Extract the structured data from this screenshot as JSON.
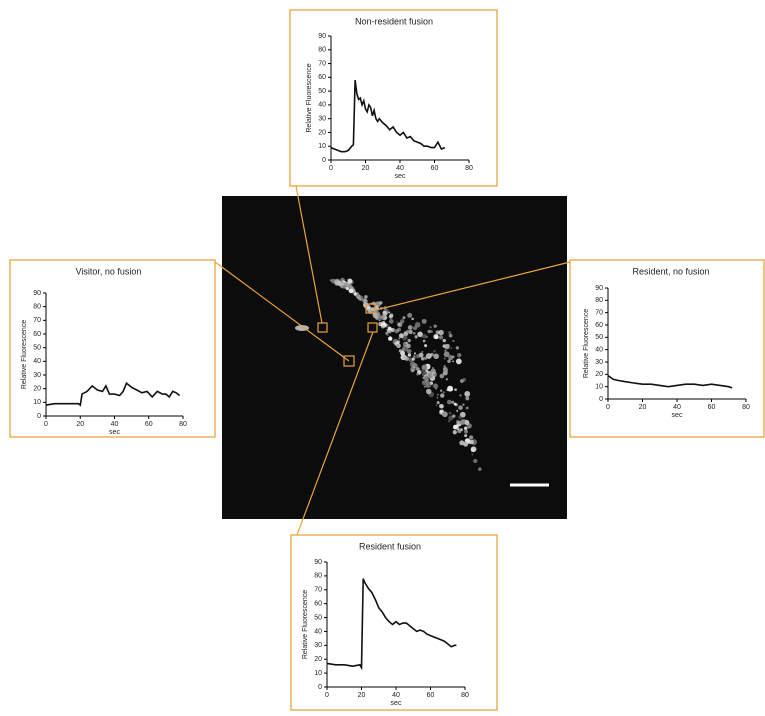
{
  "chart_data": [
    {
      "type": "line",
      "title": "Non-resident fusion",
      "x_label": "sec",
      "y_label": "Relative Fluorescence",
      "color": "#111111",
      "x": [
        0,
        2,
        4,
        6,
        8,
        10,
        12,
        13,
        14,
        15,
        16,
        17,
        18,
        19,
        20,
        21,
        22,
        23,
        24,
        25,
        26,
        27,
        28,
        30,
        32,
        34,
        36,
        38,
        40,
        42,
        44,
        46,
        48,
        50,
        52,
        54,
        56,
        58,
        60,
        62,
        64,
        66
      ],
      "values": [
        9,
        8,
        7,
        6,
        6,
        7,
        10,
        11,
        58,
        48,
        44,
        45,
        40,
        43,
        37,
        35,
        40,
        38,
        32,
        36,
        30,
        28,
        30,
        27,
        25,
        22,
        24,
        20,
        18,
        20,
        16,
        17,
        14,
        13,
        12,
        10,
        10,
        9,
        9,
        13,
        8,
        9
      ],
      "xlim": [
        0,
        80
      ],
      "ylim": [
        0,
        90
      ],
      "xticks": [
        0,
        20,
        40,
        60,
        80
      ],
      "yticks": [
        0,
        10,
        20,
        30,
        40,
        50,
        60,
        70,
        80,
        90
      ]
    },
    {
      "type": "line",
      "title": "Visitor, no fusion",
      "x_label": "sec",
      "y_label": "Relative Fluorescence",
      "color": "#111111",
      "x": [
        0,
        5,
        10,
        15,
        19,
        20,
        21,
        24,
        27,
        30,
        33,
        35,
        37,
        40,
        43,
        45,
        47,
        50,
        53,
        56,
        59,
        62,
        65,
        68,
        70,
        72,
        74,
        76,
        78
      ],
      "values": [
        8,
        9,
        9,
        9,
        9,
        8,
        16,
        18,
        22,
        19,
        18,
        22,
        16,
        16,
        15,
        18,
        24,
        21,
        19,
        17,
        18,
        14,
        18,
        16,
        16,
        14,
        18,
        17,
        15
      ],
      "xlim": [
        0,
        80
      ],
      "ylim": [
        0,
        90
      ],
      "xticks": [
        0,
        20,
        40,
        60,
        80
      ],
      "yticks": [
        0,
        10,
        20,
        30,
        40,
        50,
        60,
        70,
        80,
        90
      ]
    },
    {
      "type": "line",
      "title": "Resident, no fusion",
      "x_label": "sec",
      "y_label": "Relative Fluorescence",
      "color": "#111111",
      "x": [
        0,
        3,
        6,
        10,
        15,
        20,
        25,
        30,
        35,
        40,
        45,
        50,
        55,
        60,
        65,
        70,
        72
      ],
      "values": [
        19,
        16,
        15,
        14,
        13,
        12,
        12,
        11,
        10,
        11,
        12,
        12,
        11,
        12,
        11,
        10,
        9
      ],
      "xlim": [
        0,
        80
      ],
      "ylim": [
        0,
        90
      ],
      "xticks": [
        0,
        20,
        40,
        60,
        80
      ],
      "yticks": [
        0,
        10,
        20,
        30,
        40,
        50,
        60,
        70,
        80,
        90
      ]
    },
    {
      "type": "line",
      "title": "Resident fusion",
      "x_label": "sec",
      "y_label": "Relative Fluorescence",
      "color": "#111111",
      "x": [
        0,
        5,
        10,
        15,
        19,
        20,
        21,
        22,
        24,
        26,
        28,
        30,
        32,
        34,
        36,
        38,
        40,
        42,
        44,
        46,
        48,
        50,
        52,
        54,
        56,
        58,
        60,
        62,
        64,
        66,
        68,
        70,
        72,
        74,
        75
      ],
      "values": [
        17,
        16,
        16,
        15,
        16,
        14,
        78,
        75,
        71,
        68,
        63,
        57,
        54,
        50,
        47,
        45,
        47,
        45,
        46,
        46,
        44,
        42,
        40,
        41,
        40,
        38,
        37,
        36,
        35,
        34,
        33,
        31,
        29,
        30,
        30
      ],
      "xlim": [
        0,
        80
      ],
      "ylim": [
        0,
        90
      ],
      "xticks": [
        0,
        20,
        40,
        60,
        80
      ],
      "yticks": [
        0,
        10,
        20,
        30,
        40,
        50,
        60,
        70,
        80,
        90
      ]
    }
  ]
}
